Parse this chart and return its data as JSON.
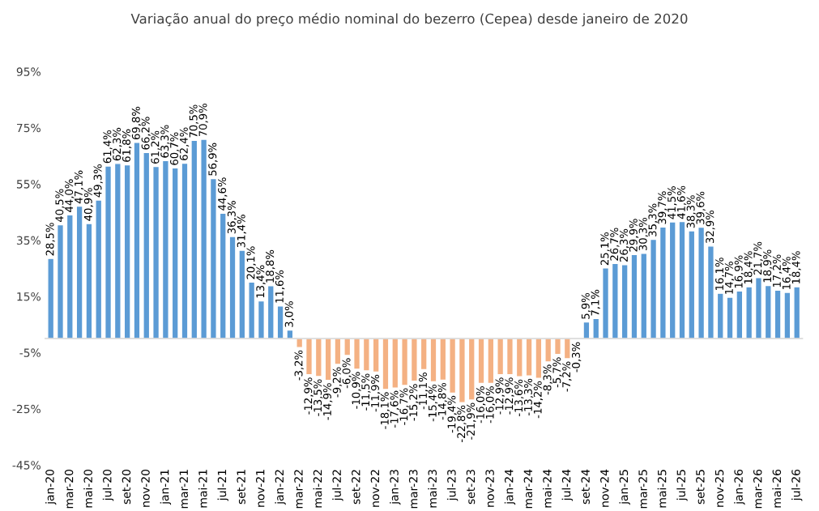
{
  "chart_data": {
    "type": "bar",
    "title": "Variação anual do preço médio nominal do bezerro (Cepea) desde janeiro de 2020",
    "categories": [
      "jan-20",
      null,
      "mar-20",
      null,
      "mai-20",
      null,
      "jul-20",
      null,
      "set-20",
      null,
      "nov-20",
      null,
      "jan-21",
      null,
      "mar-21",
      null,
      "mai-21",
      null,
      "jul-21",
      null,
      "set-21",
      null,
      "nov-21",
      null,
      "jan-22",
      null,
      "mar-22",
      null,
      "mai-22",
      null,
      "jul-22",
      null,
      "set-22",
      null,
      "nov-22",
      null,
      "jan-23",
      null,
      "mar-23",
      null,
      "mai-23",
      null,
      "jul-23",
      null,
      "set-23",
      null,
      "nov-23",
      null,
      "jan-24",
      null,
      "mar-24",
      null,
      "mai-24",
      null,
      "jul-24",
      null,
      "set-24",
      null,
      "nov-24",
      null,
      "jan-25",
      null,
      "mar-25",
      null,
      "mai-25",
      null,
      "jul-25",
      null,
      "set-25",
      null,
      "nov-25",
      null,
      "jan-26",
      null,
      "mar-26",
      null,
      "mai-26",
      null,
      "jul-26"
    ],
    "values": [
      28.5,
      40.5,
      44.0,
      47.1,
      40.9,
      49.3,
      61.4,
      62.3,
      61.8,
      69.8,
      66.2,
      61.2,
      63.3,
      60.7,
      62.4,
      70.5,
      70.9,
      56.9,
      44.6,
      36.3,
      31.4,
      20.1,
      13.4,
      18.8,
      11.6,
      3.0,
      -3.2,
      -12.9,
      -13.5,
      -14.9,
      -9.2,
      -6.0,
      -10.9,
      -11.5,
      -11.9,
      -18.1,
      -17.6,
      -16.7,
      -15.2,
      -11.1,
      -15.4,
      -14.8,
      -19.4,
      -22.8,
      -21.9,
      -16.0,
      -16.0,
      -12.9,
      -12.9,
      -13.6,
      -13.3,
      -14.2,
      -8.3,
      -5.7,
      -7.2,
      -0.3,
      5.9,
      7.1,
      25.1,
      26.7,
      26.3,
      29.9,
      30.3,
      35.3,
      39.7,
      41.5,
      41.6,
      38.3,
      39.6,
      32.9,
      16.1,
      14.7,
      16.9,
      18.4,
      21.7,
      18.9,
      17.2,
      16.4,
      18.4
    ],
    "value_labels": [
      "28,5%",
      "40,5%",
      "44,0%",
      "47,1%",
      "40,9%",
      "49,3%",
      "61,4%",
      "62,3%",
      "61,8%",
      "69,8%",
      "66,2%",
      "61,2%",
      "63,3%",
      "60,7%",
      "62,4%",
      "70,5%",
      "70,9%",
      "56,9%",
      "44,6%",
      "36,3%",
      "31,4%",
      "20,1%",
      "13,4%",
      "18,8%",
      "11,6%",
      "3,0%",
      "-3,2%",
      "-12,9%",
      "-13,5%",
      "-14,9%",
      "-9,2%",
      "-6,0%",
      "-10,9%",
      "-11,5%",
      "-11,9%",
      "-18,1%",
      "-17,6%",
      "-16,7%",
      "-15,2%",
      "-11,1%",
      "-15,4%",
      "-14,8%",
      "-19,4%",
      "-22,8%",
      "-21,9%",
      "-16,0%",
      "-16,0%",
      "-12,9%",
      "-12,9%",
      "-13,6%",
      "-13,3%",
      "-14,2%",
      "-8,3%",
      "-5,7%",
      "-7,2%",
      "-0,3%",
      "5,9%",
      "7,1%",
      "25,1%",
      "26,7%",
      "26,3%",
      "29,9%",
      "30,3%",
      "35,3%",
      "39,7%",
      "41,5%",
      "41,6%",
      "38,3%",
      "39,6%",
      "32,9%",
      "16,1%",
      "14,7%",
      "16,9%",
      "18,4%",
      "21,7%",
      "18,9%",
      "17,2%",
      "16,4%",
      "18,4%"
    ],
    "colors": [
      "#5b9bd5",
      "#5b9bd5",
      "#5b9bd5",
      "#5b9bd5",
      "#5b9bd5",
      "#5b9bd5",
      "#5b9bd5",
      "#5b9bd5",
      "#5b9bd5",
      "#5b9bd5",
      "#5b9bd5",
      "#5b9bd5",
      "#5b9bd5",
      "#5b9bd5",
      "#5b9bd5",
      "#5b9bd5",
      "#5b9bd5",
      "#5b9bd5",
      "#5b9bd5",
      "#5b9bd5",
      "#5b9bd5",
      "#5b9bd5",
      "#5b9bd5",
      "#5b9bd5",
      "#5b9bd5",
      "#5b9bd5",
      "#f4b183",
      "#f4b183",
      "#f4b183",
      "#f4b183",
      "#f4b183",
      "#f4b183",
      "#f4b183",
      "#f4b183",
      "#f4b183",
      "#f4b183",
      "#f4b183",
      "#f4b183",
      "#f4b183",
      "#f4b183",
      "#f4b183",
      "#f4b183",
      "#f4b183",
      "#f4b183",
      "#f4b183",
      "#f4b183",
      "#f4b183",
      "#f4b183",
      "#f4b183",
      "#f4b183",
      "#f4b183",
      "#f4b183",
      "#f4b183",
      "#f4b183",
      "#f4b183",
      "#f4b183",
      "#5b9bd5",
      "#5b9bd5",
      "#5b9bd5",
      "#5b9bd5",
      "#5b9bd5",
      "#5b9bd5",
      "#5b9bd5",
      "#5b9bd5",
      "#5b9bd5",
      "#5b9bd5",
      "#5b9bd5",
      "#5b9bd5",
      "#5b9bd5",
      "#5b9bd5",
      "#5b9bd5",
      "#5b9bd5",
      "#5b9bd5",
      "#5b9bd5",
      "#5b9bd5",
      "#5b9bd5",
      "#5b9bd5",
      "#5b9bd5",
      "#5b9bd5"
    ],
    "ylim": [
      -45,
      95
    ],
    "yticks": [
      {
        "value": -45,
        "label": "-45%"
      },
      {
        "value": -25,
        "label": "-25%"
      },
      {
        "value": -5,
        "label": "-5%"
      },
      {
        "value": 15,
        "label": "15%"
      },
      {
        "value": 35,
        "label": "35%"
      },
      {
        "value": 55,
        "label": "55%"
      },
      {
        "value": 75,
        "label": "75%"
      },
      {
        "value": 95,
        "label": "95%"
      }
    ],
    "grid": false
  }
}
